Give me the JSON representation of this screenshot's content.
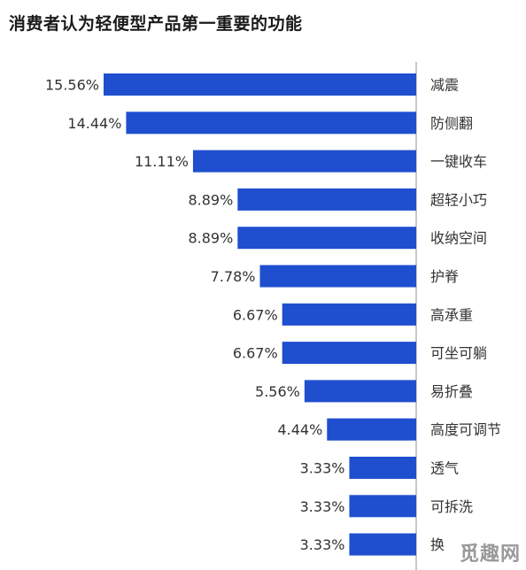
{
  "title": "消费者认为轻便型产品第一重要的功能",
  "watermark": "觅趣网",
  "chart_data": {
    "type": "bar",
    "orientation": "horizontal",
    "title": "消费者认为轻便型产品第一重要的功能",
    "xlabel": "",
    "ylabel": "",
    "xlim": [
      0,
      15.56
    ],
    "grid": false,
    "legend": "none",
    "bar_color": "#1f4fcf",
    "value_suffix": "%",
    "categories": [
      "减震",
      "防侧翻",
      "一键收车",
      "超轻小巧",
      "收纳空间",
      "护脊",
      "高承重",
      "可坐可躺",
      "易折叠",
      "高度可调节",
      "透气",
      "可拆洗",
      "换"
    ],
    "values": [
      15.56,
      14.44,
      11.11,
      8.89,
      8.89,
      7.78,
      6.67,
      6.67,
      5.56,
      4.44,
      3.33,
      3.33,
      3.33
    ]
  }
}
